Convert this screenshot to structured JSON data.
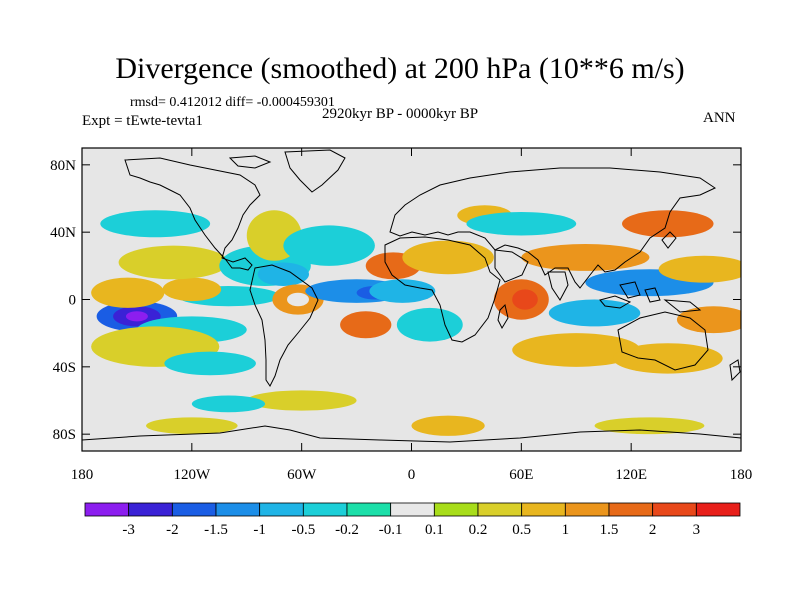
{
  "chart_data": {
    "type": "heatmap",
    "title": "Divergence (smoothed) at 200 hPa (10**6 m/s)",
    "stats_text": "rmsd= 0.412012 diff= -0.000459301",
    "period": "2920kyr BP - 0000kyr BP",
    "experiment": "Expt = tEwte-tevta1",
    "season": "ANN",
    "x_ticks": [
      {
        "value": -180,
        "label": "180"
      },
      {
        "value": -120,
        "label": "120W"
      },
      {
        "value": -60,
        "label": "60W"
      },
      {
        "value": 0,
        "label": "0"
      },
      {
        "value": 60,
        "label": "60E"
      },
      {
        "value": 120,
        "label": "120E"
      },
      {
        "value": 180,
        "label": "180"
      }
    ],
    "y_ticks": [
      {
        "value": 80,
        "label": "80N"
      },
      {
        "value": 40,
        "label": "40N"
      },
      {
        "value": 0,
        "label": "0"
      },
      {
        "value": -40,
        "label": "40S"
      },
      {
        "value": -80,
        "label": "80S"
      }
    ],
    "xlim": [
      -180,
      180
    ],
    "ylim": [
      -90,
      90
    ],
    "colorbar": {
      "colors": [
        "#8c1eef",
        "#3a22d6",
        "#1a5de4",
        "#1c8ee8",
        "#1fb4e6",
        "#1ccfd8",
        "#1cdfa9",
        "#e8e8e8",
        "#a8dd1a",
        "#d9cf2a",
        "#e8b61f",
        "#eb951c",
        "#e76a18",
        "#e8481a",
        "#e81f1a"
      ],
      "labels": [
        "-3",
        "-2",
        "-1.5",
        "-1",
        "-0.5",
        "-0.2",
        "-0.1",
        "0.1",
        "0.2",
        "0.5",
        "1",
        "1.5",
        "2",
        "3"
      ]
    },
    "fields": [
      {
        "lon": -150,
        "lat": -10,
        "level": 2,
        "rx": 22,
        "ry": 9
      },
      {
        "lon": -150,
        "lat": -10,
        "level": 1,
        "rx": 13,
        "ry": 6
      },
      {
        "lon": -150,
        "lat": -10,
        "level": 0,
        "rx": 6,
        "ry": 3
      },
      {
        "lon": -120,
        "lat": -18,
        "level": 5,
        "rx": 30,
        "ry": 8
      },
      {
        "lon": -100,
        "lat": 2,
        "level": 5,
        "rx": 28,
        "ry": 6
      },
      {
        "lon": -155,
        "lat": 4,
        "level": 10,
        "rx": 20,
        "ry": 9
      },
      {
        "lon": -120,
        "lat": 6,
        "level": 10,
        "rx": 16,
        "ry": 7
      },
      {
        "lon": -130,
        "lat": 22,
        "level": 9,
        "rx": 30,
        "ry": 10
      },
      {
        "lon": -140,
        "lat": -28,
        "level": 9,
        "rx": 35,
        "ry": 12
      },
      {
        "lon": -110,
        "lat": -38,
        "level": 5,
        "rx": 25,
        "ry": 7
      },
      {
        "lon": -80,
        "lat": 20,
        "level": 5,
        "rx": 25,
        "ry": 12
      },
      {
        "lon": -70,
        "lat": 15,
        "level": 4,
        "rx": 14,
        "ry": 7
      },
      {
        "lon": -62,
        "lat": 0,
        "level": 11,
        "rx": 14,
        "ry": 9
      },
      {
        "lon": -62,
        "lat": 0,
        "level": 7,
        "rx": 6,
        "ry": 4
      },
      {
        "lon": -75,
        "lat": 38,
        "level": 9,
        "rx": 15,
        "ry": 15
      },
      {
        "lon": -45,
        "lat": 32,
        "level": 5,
        "rx": 25,
        "ry": 12
      },
      {
        "lon": -30,
        "lat": 5,
        "level": 3,
        "rx": 28,
        "ry": 7
      },
      {
        "lon": -20,
        "lat": 4,
        "level": 2,
        "rx": 10,
        "ry": 4
      },
      {
        "lon": -25,
        "lat": -15,
        "level": 12,
        "rx": 14,
        "ry": 8
      },
      {
        "lon": -10,
        "lat": 20,
        "level": 12,
        "rx": 15,
        "ry": 8
      },
      {
        "lon": -5,
        "lat": 5,
        "level": 4,
        "rx": 18,
        "ry": 7
      },
      {
        "lon": 20,
        "lat": 25,
        "level": 10,
        "rx": 25,
        "ry": 10
      },
      {
        "lon": 10,
        "lat": -15,
        "level": 5,
        "rx": 18,
        "ry": 10
      },
      {
        "lon": 40,
        "lat": 50,
        "level": 10,
        "rx": 15,
        "ry": 6
      },
      {
        "lon": 60,
        "lat": 45,
        "level": 5,
        "rx": 30,
        "ry": 7
      },
      {
        "lon": 60,
        "lat": 0,
        "level": 12,
        "rx": 15,
        "ry": 12
      },
      {
        "lon": 62,
        "lat": 0,
        "level": 13,
        "rx": 7,
        "ry": 6
      },
      {
        "lon": 95,
        "lat": 25,
        "level": 11,
        "rx": 35,
        "ry": 8
      },
      {
        "lon": 100,
        "lat": -8,
        "level": 4,
        "rx": 25,
        "ry": 8
      },
      {
        "lon": 90,
        "lat": -30,
        "level": 10,
        "rx": 35,
        "ry": 10
      },
      {
        "lon": 130,
        "lat": 10,
        "level": 3,
        "rx": 35,
        "ry": 8
      },
      {
        "lon": 160,
        "lat": 18,
        "level": 10,
        "rx": 25,
        "ry": 8
      },
      {
        "lon": 165,
        "lat": -12,
        "level": 11,
        "rx": 20,
        "ry": 8
      },
      {
        "lon": 140,
        "lat": -35,
        "level": 10,
        "rx": 30,
        "ry": 9
      },
      {
        "lon": 140,
        "lat": 45,
        "level": 12,
        "rx": 25,
        "ry": 8
      },
      {
        "lon": -140,
        "lat": 45,
        "level": 5,
        "rx": 30,
        "ry": 8
      },
      {
        "lon": -60,
        "lat": -60,
        "level": 9,
        "rx": 30,
        "ry": 6
      },
      {
        "lon": -100,
        "lat": -62,
        "level": 5,
        "rx": 20,
        "ry": 5
      },
      {
        "lon": -120,
        "lat": -75,
        "level": 9,
        "rx": 25,
        "ry": 5
      },
      {
        "lon": 20,
        "lat": -75,
        "level": 10,
        "rx": 20,
        "ry": 6
      },
      {
        "lon": 130,
        "lat": -75,
        "level": 9,
        "rx": 30,
        "ry": 5
      }
    ]
  }
}
